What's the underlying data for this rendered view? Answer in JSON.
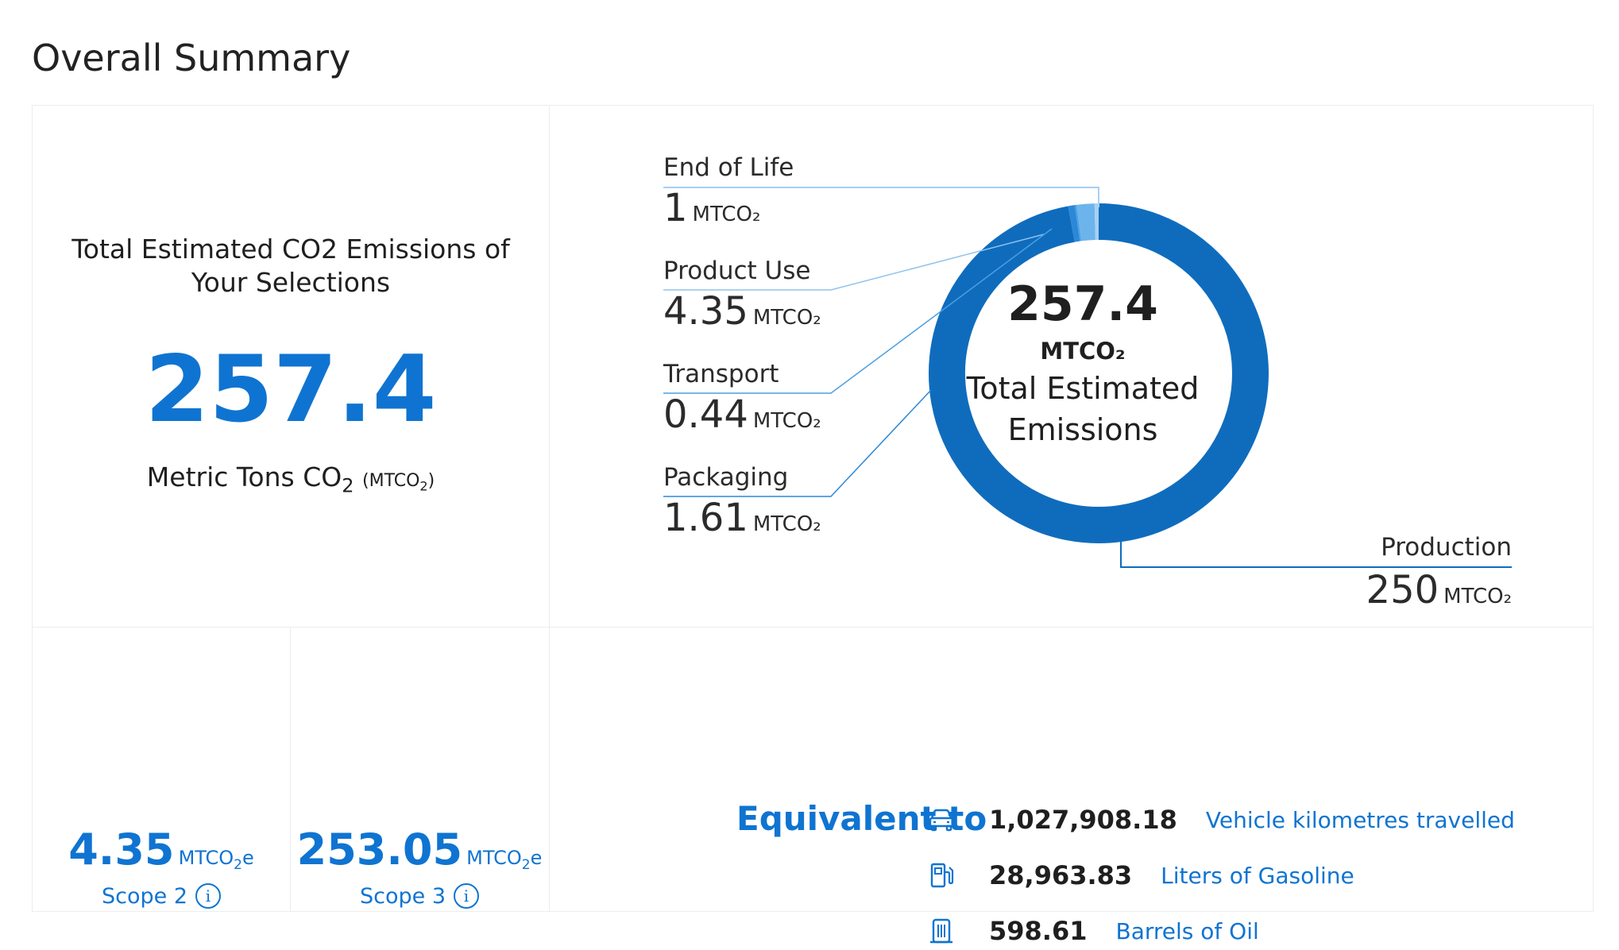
{
  "page": {
    "title": "Overall Summary"
  },
  "total": {
    "heading": "Total Estimated CO2 Emissions of Your Selections",
    "value": "257.4",
    "unit_prefix": "Metric Tons CO",
    "unit_sub": "2",
    "unit_abbr_open": "(MTCO",
    "unit_abbr_sub": "2",
    "unit_abbr_close": ")"
  },
  "donut": {
    "center_value": "257.4",
    "center_unit": "MTCO₂",
    "center_label_line1": "Total Estimated",
    "center_label_line2": "Emissions",
    "unit": "MTCO₂",
    "colors": {
      "production": "#0f6cbd",
      "packaging": "#2b88d8",
      "transport": "#4a9fe3",
      "product_use": "#6cb4ec",
      "end_of_life": "#a7d0f4",
      "leader": "#8fc3ee"
    },
    "segments": [
      {
        "label": "End of Life",
        "value": "1"
      },
      {
        "label": "Product Use",
        "value": "4.35"
      },
      {
        "label": "Transport",
        "value": "0.44"
      },
      {
        "label": "Packaging",
        "value": "1.61"
      },
      {
        "label": "Production",
        "value": "250"
      }
    ]
  },
  "scopes": [
    {
      "value": "4.35",
      "unit": "MTCO",
      "unit_sub": "2",
      "unit_suffix": "e",
      "label": "Scope 2",
      "info": "i"
    },
    {
      "value": "253.05",
      "unit": "MTCO",
      "unit_sub": "2",
      "unit_suffix": "e",
      "label": "Scope 3",
      "info": "i"
    }
  ],
  "equivalents": {
    "heading": "Equivalent to",
    "items": [
      {
        "icon": "car-icon",
        "value": "1,027,908.18",
        "label": "Vehicle kilometres travelled"
      },
      {
        "icon": "gas-pump-icon",
        "value": "28,963.83",
        "label": "Liters of Gasoline"
      },
      {
        "icon": "oil-barrel-icon",
        "value": "598.61",
        "label": "Barrels of Oil"
      }
    ]
  }
}
